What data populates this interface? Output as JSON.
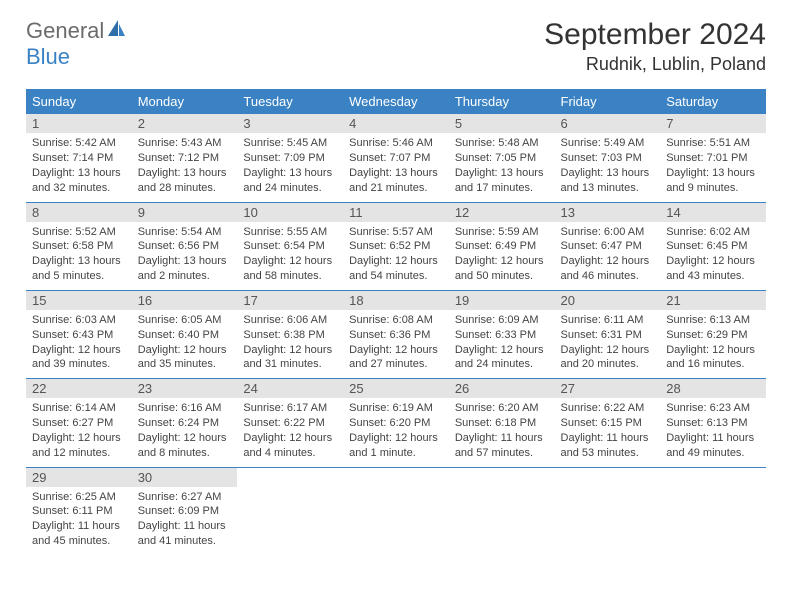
{
  "brand": {
    "name_part1": "General",
    "name_part2": "Blue"
  },
  "title": "September 2024",
  "location": "Rudnik, Lublin, Poland",
  "colors": {
    "header_bg": "#3b82c4",
    "daynum_bg": "#e4e4e4",
    "text": "#333333",
    "brand_gray": "#6b6b6b",
    "brand_blue": "#3b82c4"
  },
  "day_names": [
    "Sunday",
    "Monday",
    "Tuesday",
    "Wednesday",
    "Thursday",
    "Friday",
    "Saturday"
  ],
  "weeks": [
    [
      {
        "n": "1",
        "sr": "5:42 AM",
        "ss": "7:14 PM",
        "dl": "13 hours and 32 minutes."
      },
      {
        "n": "2",
        "sr": "5:43 AM",
        "ss": "7:12 PM",
        "dl": "13 hours and 28 minutes."
      },
      {
        "n": "3",
        "sr": "5:45 AM",
        "ss": "7:09 PM",
        "dl": "13 hours and 24 minutes."
      },
      {
        "n": "4",
        "sr": "5:46 AM",
        "ss": "7:07 PM",
        "dl": "13 hours and 21 minutes."
      },
      {
        "n": "5",
        "sr": "5:48 AM",
        "ss": "7:05 PM",
        "dl": "13 hours and 17 minutes."
      },
      {
        "n": "6",
        "sr": "5:49 AM",
        "ss": "7:03 PM",
        "dl": "13 hours and 13 minutes."
      },
      {
        "n": "7",
        "sr": "5:51 AM",
        "ss": "7:01 PM",
        "dl": "13 hours and 9 minutes."
      }
    ],
    [
      {
        "n": "8",
        "sr": "5:52 AM",
        "ss": "6:58 PM",
        "dl": "13 hours and 5 minutes."
      },
      {
        "n": "9",
        "sr": "5:54 AM",
        "ss": "6:56 PM",
        "dl": "13 hours and 2 minutes."
      },
      {
        "n": "10",
        "sr": "5:55 AM",
        "ss": "6:54 PM",
        "dl": "12 hours and 58 minutes."
      },
      {
        "n": "11",
        "sr": "5:57 AM",
        "ss": "6:52 PM",
        "dl": "12 hours and 54 minutes."
      },
      {
        "n": "12",
        "sr": "5:59 AM",
        "ss": "6:49 PM",
        "dl": "12 hours and 50 minutes."
      },
      {
        "n": "13",
        "sr": "6:00 AM",
        "ss": "6:47 PM",
        "dl": "12 hours and 46 minutes."
      },
      {
        "n": "14",
        "sr": "6:02 AM",
        "ss": "6:45 PM",
        "dl": "12 hours and 43 minutes."
      }
    ],
    [
      {
        "n": "15",
        "sr": "6:03 AM",
        "ss": "6:43 PM",
        "dl": "12 hours and 39 minutes."
      },
      {
        "n": "16",
        "sr": "6:05 AM",
        "ss": "6:40 PM",
        "dl": "12 hours and 35 minutes."
      },
      {
        "n": "17",
        "sr": "6:06 AM",
        "ss": "6:38 PM",
        "dl": "12 hours and 31 minutes."
      },
      {
        "n": "18",
        "sr": "6:08 AM",
        "ss": "6:36 PM",
        "dl": "12 hours and 27 minutes."
      },
      {
        "n": "19",
        "sr": "6:09 AM",
        "ss": "6:33 PM",
        "dl": "12 hours and 24 minutes."
      },
      {
        "n": "20",
        "sr": "6:11 AM",
        "ss": "6:31 PM",
        "dl": "12 hours and 20 minutes."
      },
      {
        "n": "21",
        "sr": "6:13 AM",
        "ss": "6:29 PM",
        "dl": "12 hours and 16 minutes."
      }
    ],
    [
      {
        "n": "22",
        "sr": "6:14 AM",
        "ss": "6:27 PM",
        "dl": "12 hours and 12 minutes."
      },
      {
        "n": "23",
        "sr": "6:16 AM",
        "ss": "6:24 PM",
        "dl": "12 hours and 8 minutes."
      },
      {
        "n": "24",
        "sr": "6:17 AM",
        "ss": "6:22 PM",
        "dl": "12 hours and 4 minutes."
      },
      {
        "n": "25",
        "sr": "6:19 AM",
        "ss": "6:20 PM",
        "dl": "12 hours and 1 minute."
      },
      {
        "n": "26",
        "sr": "6:20 AM",
        "ss": "6:18 PM",
        "dl": "11 hours and 57 minutes."
      },
      {
        "n": "27",
        "sr": "6:22 AM",
        "ss": "6:15 PM",
        "dl": "11 hours and 53 minutes."
      },
      {
        "n": "28",
        "sr": "6:23 AM",
        "ss": "6:13 PM",
        "dl": "11 hours and 49 minutes."
      }
    ],
    [
      {
        "n": "29",
        "sr": "6:25 AM",
        "ss": "6:11 PM",
        "dl": "11 hours and 45 minutes."
      },
      {
        "n": "30",
        "sr": "6:27 AM",
        "ss": "6:09 PM",
        "dl": "11 hours and 41 minutes."
      },
      null,
      null,
      null,
      null,
      null
    ]
  ],
  "labels": {
    "sunrise": "Sunrise:",
    "sunset": "Sunset:",
    "daylight": "Daylight:"
  }
}
